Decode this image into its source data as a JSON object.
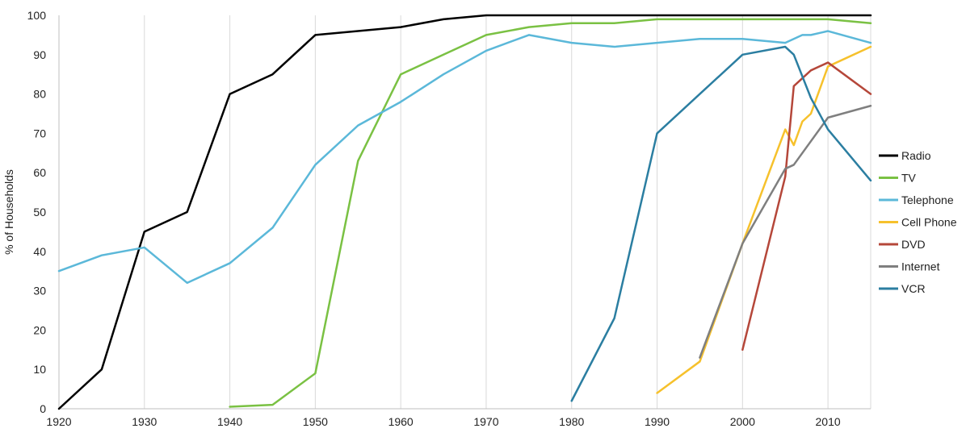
{
  "chart_data": {
    "type": "line",
    "title": "",
    "xlabel": "",
    "ylabel": "% of Households",
    "xlim": [
      1920,
      2015
    ],
    "ylim": [
      0,
      100
    ],
    "x_ticks": [
      1920,
      1930,
      1940,
      1950,
      1960,
      1970,
      1980,
      1990,
      2000,
      2010
    ],
    "y_ticks": [
      0,
      10,
      20,
      30,
      40,
      50,
      60,
      70,
      80,
      90,
      100
    ],
    "grid": "vertical",
    "legend_position": "right",
    "series": [
      {
        "name": "Radio",
        "color": "#000000",
        "points": [
          [
            1920,
            0
          ],
          [
            1925,
            10
          ],
          [
            1930,
            45
          ],
          [
            1935,
            50
          ],
          [
            1940,
            80
          ],
          [
            1945,
            85
          ],
          [
            1950,
            95
          ],
          [
            1955,
            96
          ],
          [
            1960,
            97
          ],
          [
            1965,
            99
          ],
          [
            1970,
            100
          ],
          [
            1975,
            100
          ],
          [
            1980,
            100
          ],
          [
            1985,
            100
          ],
          [
            1990,
            100
          ],
          [
            1995,
            100
          ],
          [
            2000,
            100
          ],
          [
            2005,
            100
          ],
          [
            2010,
            100
          ],
          [
            2015,
            100
          ]
        ]
      },
      {
        "name": "TV",
        "color": "#7ac143",
        "points": [
          [
            1940,
            0.5
          ],
          [
            1945,
            1
          ],
          [
            1950,
            9
          ],
          [
            1955,
            63
          ],
          [
            1960,
            85
          ],
          [
            1965,
            90
          ],
          [
            1970,
            95
          ],
          [
            1975,
            97
          ],
          [
            1980,
            98
          ],
          [
            1985,
            98
          ],
          [
            1990,
            99
          ],
          [
            1995,
            99
          ],
          [
            2000,
            99
          ],
          [
            2005,
            99
          ],
          [
            2010,
            99
          ],
          [
            2015,
            98
          ]
        ]
      },
      {
        "name": "Telephone",
        "color": "#5bb8d9",
        "points": [
          [
            1920,
            35
          ],
          [
            1925,
            39
          ],
          [
            1930,
            41
          ],
          [
            1935,
            32
          ],
          [
            1940,
            37
          ],
          [
            1945,
            46
          ],
          [
            1950,
            62
          ],
          [
            1955,
            72
          ],
          [
            1960,
            78
          ],
          [
            1965,
            85
          ],
          [
            1970,
            91
          ],
          [
            1975,
            95
          ],
          [
            1980,
            93
          ],
          [
            1985,
            92
          ],
          [
            1990,
            93
          ],
          [
            1995,
            94
          ],
          [
            2000,
            94
          ],
          [
            2005,
            93
          ],
          [
            2007,
            95
          ],
          [
            2008,
            95
          ],
          [
            2010,
            96
          ],
          [
            2015,
            93
          ]
        ]
      },
      {
        "name": "Cell Phone",
        "color": "#f6c12c",
        "points": [
          [
            1990,
            4
          ],
          [
            1995,
            12
          ],
          [
            2000,
            42
          ],
          [
            2005,
            71
          ],
          [
            2006,
            67
          ],
          [
            2007,
            73
          ],
          [
            2008,
            75
          ],
          [
            2010,
            87
          ],
          [
            2015,
            92
          ]
        ]
      },
      {
        "name": "DVD",
        "color": "#b5473a",
        "points": [
          [
            2000,
            15
          ],
          [
            2005,
            59
          ],
          [
            2006,
            82
          ],
          [
            2008,
            86
          ],
          [
            2010,
            88
          ],
          [
            2015,
            80
          ]
        ]
      },
      {
        "name": "Internet",
        "color": "#7f7f7f",
        "points": [
          [
            1995,
            13
          ],
          [
            2000,
            42
          ],
          [
            2005,
            61
          ],
          [
            2006,
            62
          ],
          [
            2010,
            74
          ],
          [
            2015,
            77
          ]
        ]
      },
      {
        "name": "VCR",
        "color": "#2b7ea1",
        "points": [
          [
            1980,
            2
          ],
          [
            1985,
            23
          ],
          [
            1990,
            70
          ],
          [
            1995,
            80
          ],
          [
            2000,
            90
          ],
          [
            2005,
            92
          ],
          [
            2006,
            90
          ],
          [
            2008,
            79
          ],
          [
            2010,
            71
          ],
          [
            2015,
            58
          ]
        ]
      }
    ]
  }
}
